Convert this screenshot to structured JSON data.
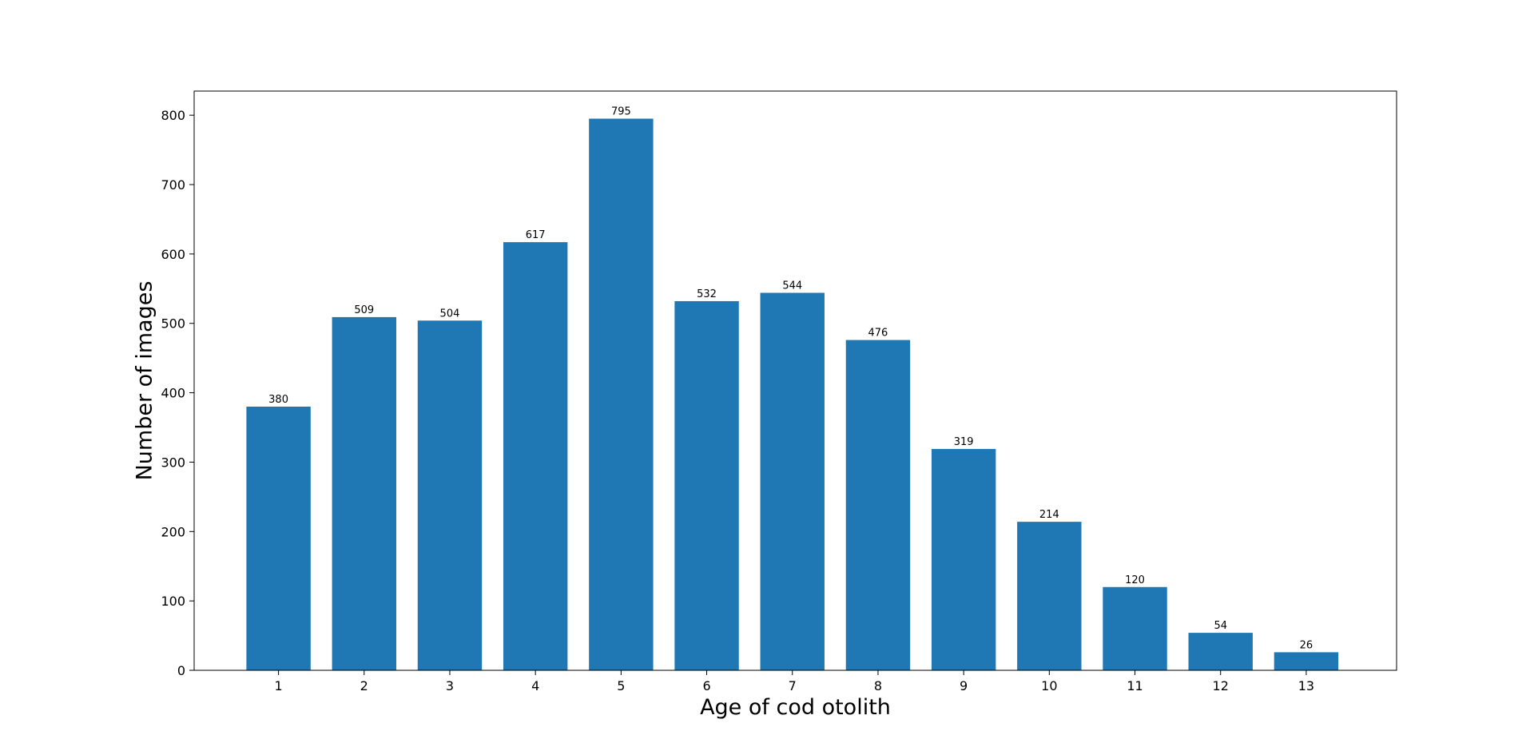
{
  "chart_data": {
    "type": "bar",
    "title": "",
    "xlabel": "Age of cod otolith",
    "ylabel": "Number of images",
    "categories": [
      "1",
      "2",
      "3",
      "4",
      "5",
      "6",
      "7",
      "8",
      "9",
      "10",
      "11",
      "12",
      "13"
    ],
    "values": [
      380,
      509,
      504,
      617,
      795,
      532,
      544,
      476,
      319,
      214,
      120,
      54,
      26
    ],
    "data_labels": [
      "380",
      "509",
      "504",
      "617",
      "795",
      "532",
      "544",
      "476",
      "319",
      "214",
      "120",
      "54",
      "26"
    ],
    "yticks": [
      0,
      100,
      200,
      300,
      400,
      500,
      600,
      700,
      800
    ],
    "ytick_labels": [
      "0",
      "100",
      "200",
      "300",
      "400",
      "500",
      "600",
      "700",
      "800"
    ],
    "ylim": [
      0,
      834.75
    ],
    "xlim": [
      0.015,
      14.055
    ],
    "grid": false,
    "legend": "none",
    "bar_color": "#1f77b4"
  }
}
